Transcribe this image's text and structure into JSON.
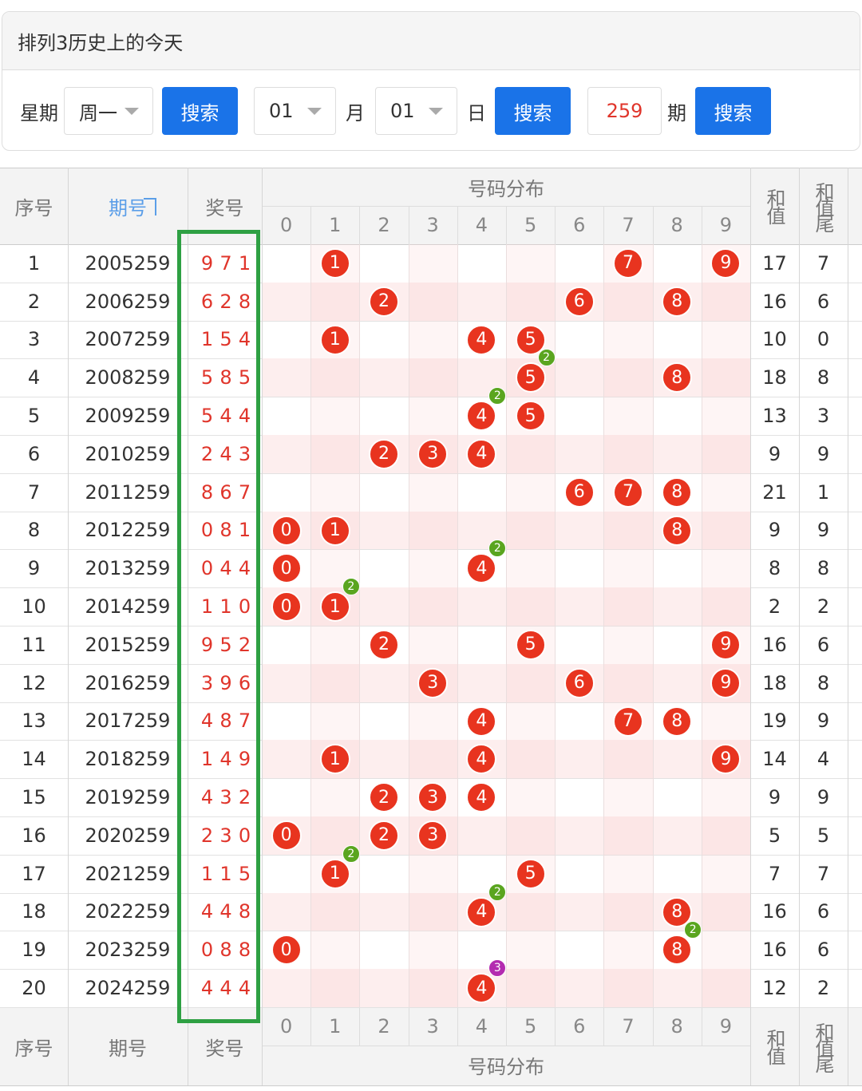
{
  "header": {
    "title": "排列3历史上的今天"
  },
  "search": {
    "weekday_label": "星期",
    "weekday": "周一",
    "weekday_button": "搜索",
    "month": "01",
    "month_label": "月",
    "day": "01",
    "day_label": "日",
    "date_button": "搜索",
    "period": "259",
    "period_label": "期",
    "period_button": "搜索"
  },
  "table": {
    "header": {
      "index": "序号",
      "issue": "期号",
      "number": "奖号",
      "distribution": "号码分布",
      "digits": [
        "0",
        "1",
        "2",
        "3",
        "4",
        "5",
        "6",
        "7",
        "8",
        "9"
      ],
      "sum": "和值",
      "sum_tail": "和值尾"
    },
    "rows": [
      {
        "index": 1,
        "issue": "2005259",
        "draw": [
          "9",
          "7",
          "1"
        ],
        "sum": 17,
        "tail": 7
      },
      {
        "index": 2,
        "issue": "2006259",
        "draw": [
          "6",
          "2",
          "8"
        ],
        "sum": 16,
        "tail": 6
      },
      {
        "index": 3,
        "issue": "2007259",
        "draw": [
          "1",
          "5",
          "4"
        ],
        "sum": 10,
        "tail": 0
      },
      {
        "index": 4,
        "issue": "2008259",
        "draw": [
          "5",
          "8",
          "5"
        ],
        "sum": 18,
        "tail": 8,
        "repeat": "2"
      },
      {
        "index": 5,
        "issue": "2009259",
        "draw": [
          "5",
          "4",
          "4"
        ],
        "sum": 13,
        "tail": 3,
        "repeat": "2"
      },
      {
        "index": 6,
        "issue": "2010259",
        "draw": [
          "2",
          "4",
          "3"
        ],
        "sum": 9,
        "tail": 9
      },
      {
        "index": 7,
        "issue": "2011259",
        "draw": [
          "8",
          "6",
          "7"
        ],
        "sum": 21,
        "tail": 1
      },
      {
        "index": 8,
        "issue": "2012259",
        "draw": [
          "0",
          "8",
          "1"
        ],
        "sum": 9,
        "tail": 9
      },
      {
        "index": 9,
        "issue": "2013259",
        "draw": [
          "0",
          "4",
          "4"
        ],
        "sum": 8,
        "tail": 8,
        "repeat": "2"
      },
      {
        "index": 10,
        "issue": "2014259",
        "draw": [
          "1",
          "1",
          "0"
        ],
        "sum": 2,
        "tail": 2,
        "repeat": "2"
      },
      {
        "index": 11,
        "issue": "2015259",
        "draw": [
          "9",
          "5",
          "2"
        ],
        "sum": 16,
        "tail": 6
      },
      {
        "index": 12,
        "issue": "2016259",
        "draw": [
          "3",
          "9",
          "6"
        ],
        "sum": 18,
        "tail": 8
      },
      {
        "index": 13,
        "issue": "2017259",
        "draw": [
          "4",
          "8",
          "7"
        ],
        "sum": 19,
        "tail": 9
      },
      {
        "index": 14,
        "issue": "2018259",
        "draw": [
          "1",
          "4",
          "9"
        ],
        "sum": 14,
        "tail": 4
      },
      {
        "index": 15,
        "issue": "2019259",
        "draw": [
          "4",
          "3",
          "2"
        ],
        "sum": 9,
        "tail": 9
      },
      {
        "index": 16,
        "issue": "2020259",
        "draw": [
          "2",
          "3",
          "0"
        ],
        "sum": 5,
        "tail": 5
      },
      {
        "index": 17,
        "issue": "2021259",
        "draw": [
          "1",
          "1",
          "5"
        ],
        "sum": 7,
        "tail": 7,
        "repeat": "2"
      },
      {
        "index": 18,
        "issue": "2022259",
        "draw": [
          "4",
          "4",
          "8"
        ],
        "sum": 16,
        "tail": 6,
        "repeat": "2"
      },
      {
        "index": 19,
        "issue": "2023259",
        "draw": [
          "0",
          "8",
          "8"
        ],
        "sum": 16,
        "tail": 6,
        "repeat": "2"
      },
      {
        "index": 20,
        "issue": "2024259",
        "draw": [
          "4",
          "4",
          "4"
        ],
        "sum": 12,
        "tail": 2,
        "repeat": "3"
      }
    ],
    "footer": {
      "index": "序号",
      "issue": "期号",
      "number": "奖号",
      "distribution": "号码分布",
      "digits": [
        "0",
        "1",
        "2",
        "3",
        "4",
        "5",
        "6",
        "7",
        "8",
        "9"
      ],
      "sum": "和值",
      "sum_tail": "和值尾"
    }
  }
}
